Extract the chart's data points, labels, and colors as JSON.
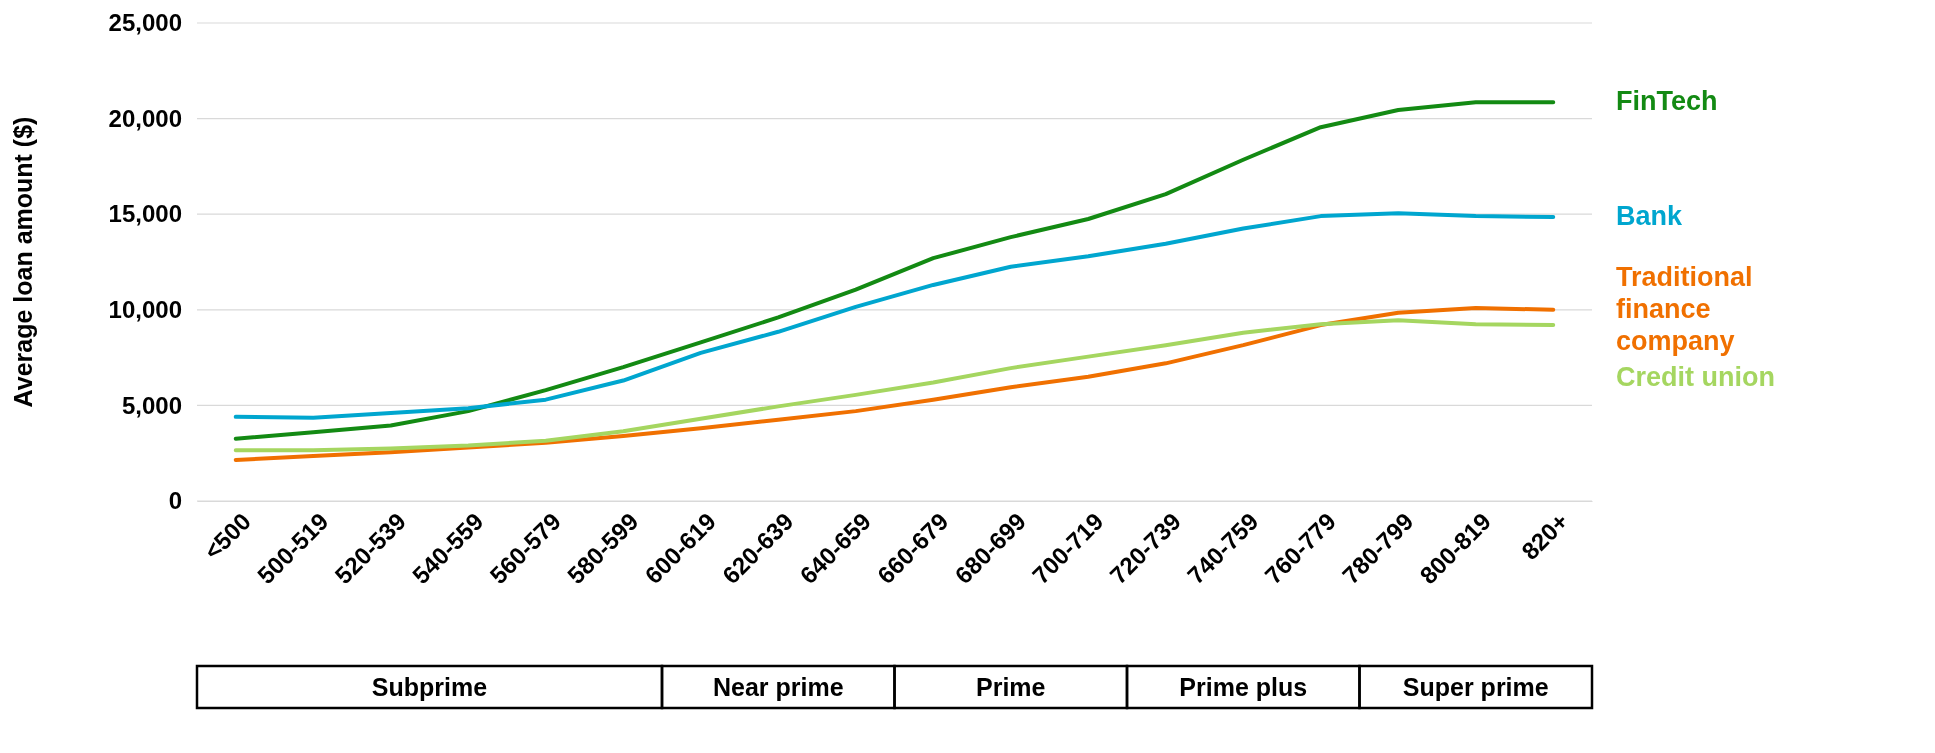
{
  "chart_data": {
    "type": "line",
    "ylabel": "Average loan amount ($)",
    "categories": [
      "<500",
      "500-519",
      "520-539",
      "540-559",
      "560-579",
      "580-599",
      "600-619",
      "620-639",
      "640-659",
      "660-679",
      "680-699",
      "700-719",
      "720-739",
      "740-759",
      "760-779",
      "780-799",
      "800-819",
      "820+"
    ],
    "series": [
      {
        "name": "FinTech",
        "color": "#138a13",
        "values": [
          3250,
          3600,
          3950,
          4700,
          5800,
          7000,
          8300,
          9600,
          11050,
          12700,
          13800,
          14750,
          16050,
          17850,
          19550,
          20450,
          20850,
          20850
        ]
      },
      {
        "name": "Bank",
        "color": "#00a6cf",
        "values": [
          4400,
          4350,
          4600,
          4850,
          5300,
          6300,
          7750,
          8850,
          10150,
          11300,
          12250,
          12800,
          13450,
          14250,
          14900,
          15050,
          14900,
          14850
        ]
      },
      {
        "name": "Traditional finance company",
        "color": "#f07000",
        "values": [
          2150,
          2350,
          2550,
          2800,
          3050,
          3400,
          3800,
          4250,
          4700,
          5300,
          5950,
          6500,
          7200,
          8150,
          9200,
          9850,
          10100,
          10000
        ]
      },
      {
        "name": "Credit union",
        "color": "#a5d660",
        "values": [
          2650,
          2650,
          2750,
          2900,
          3150,
          3650,
          4300,
          4950,
          5550,
          6200,
          6950,
          7550,
          8150,
          8800,
          9250,
          9450,
          9250,
          9200
        ]
      }
    ],
    "ylim": [
      0,
      25000
    ],
    "yticks": [
      {
        "value": 0,
        "label": "0"
      },
      {
        "value": 5000,
        "label": "5,000"
      },
      {
        "value": 10000,
        "label": "10,000"
      },
      {
        "value": 15000,
        "label": "15,000"
      },
      {
        "value": 20000,
        "label": "20,000"
      },
      {
        "value": 25000,
        "label": "25,000"
      }
    ],
    "grid": "y",
    "legend": "right",
    "marker": "none",
    "line_style": "solid",
    "annotations": [
      "Subprime",
      "Near prime",
      "Prime",
      "Prime plus",
      "Super prime"
    ]
  }
}
